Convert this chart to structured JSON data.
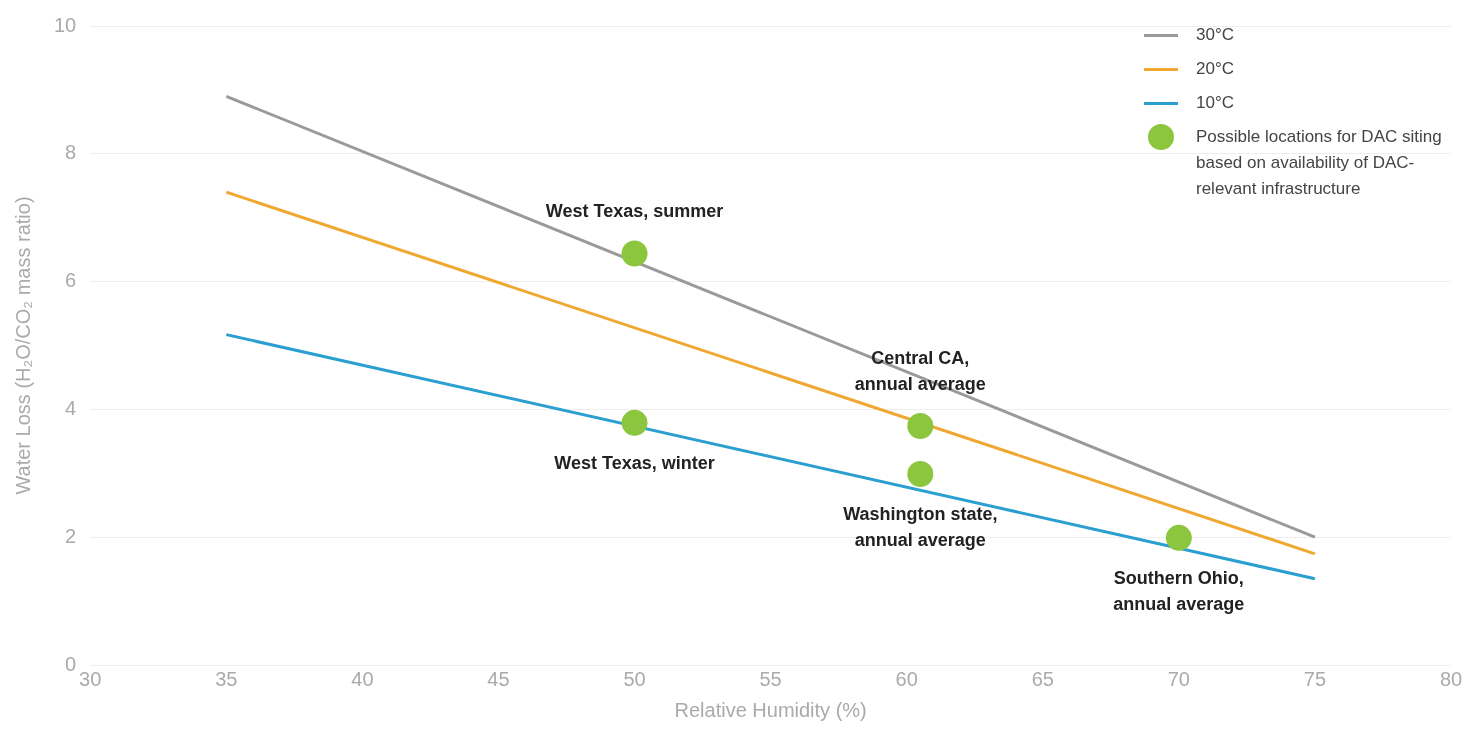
{
  "chart_data": {
    "type": "line",
    "xlabel": "Relative Humidity (%)",
    "ylabel": "Water Loss (H₂O/CO₂ mass ratio)",
    "xlim": [
      30,
      80
    ],
    "xticks": [
      30,
      35,
      40,
      45,
      50,
      55,
      60,
      65,
      70,
      75,
      80
    ],
    "ylim": [
      0,
      10
    ],
    "yticks": [
      0,
      2,
      4,
      6,
      8,
      10
    ],
    "grid": "y",
    "legend": "top right",
    "line_style": "solid",
    "series": [
      {
        "name": "30°C",
        "color": "#9a9a9a",
        "marker": "none",
        "x": [
          35,
          75
        ],
        "values": [
          8.9,
          2.0
        ]
      },
      {
        "name": "20°C",
        "color": "#f0a830",
        "marker": "none",
        "x": [
          35,
          75
        ],
        "values": [
          7.4,
          1.74
        ]
      },
      {
        "name": "10°C",
        "color": "#2a9fd0",
        "marker": "none",
        "x": [
          35,
          75
        ],
        "values": [
          5.17,
          1.35
        ]
      },
      {
        "name": "Possible locations for DAC siting based on availability of DAC-relevant infrastructure",
        "color": "#8cc63f",
        "type": "scatter",
        "marker": "circle",
        "x": [
          50,
          50,
          60.5,
          60.5,
          70
        ],
        "values": [
          6.44,
          3.79,
          3.74,
          2.99,
          1.99
        ]
      }
    ],
    "annotations": [
      {
        "text": "West Texas, summer",
        "x": 50,
        "y": 6.44
      },
      {
        "text": "West Texas, winter",
        "x": 50,
        "y": 3.79
      },
      {
        "text": "Central CA, annual average",
        "x": 60.5,
        "y": 3.74
      },
      {
        "text": "Washington state, annual average",
        "x": 60.5,
        "y": 2.99
      },
      {
        "text": "Southern Ohio, annual average",
        "x": 70,
        "y": 1.99
      }
    ]
  }
}
